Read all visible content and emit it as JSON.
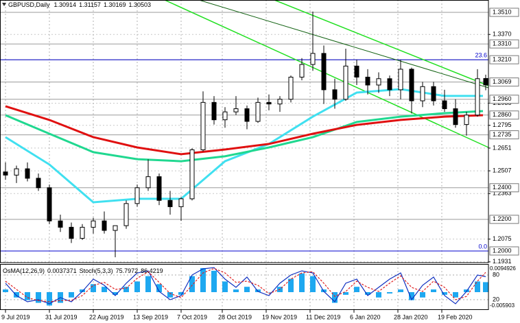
{
  "chart_data": {
    "type": "candlestick",
    "title": "GBPUSD,Daily",
    "x": [
      0,
      4,
      8,
      12,
      16,
      20,
      24,
      28,
      32,
      36,
      40,
      44,
      48,
      52,
      56,
      60,
      64,
      68,
      72,
      76,
      80,
      84,
      88,
      92,
      96,
      100,
      104,
      108,
      112,
      116,
      120,
      124,
      128,
      132,
      136,
      140,
      144,
      148,
      152,
      156,
      160,
      164,
      168,
      172,
      175
    ],
    "open": [
      1.25,
      1.248,
      1.252,
      1.246,
      1.24,
      1.219,
      1.215,
      1.208,
      1.215,
      1.219,
      1.213,
      1.216,
      1.23,
      1.24,
      1.247,
      1.232,
      1.228,
      1.233,
      1.264,
      1.294,
      1.283,
      1.288,
      1.29,
      1.282,
      1.294,
      1.293,
      1.296,
      1.31,
      1.318,
      1.325,
      1.302,
      1.296,
      1.317,
      1.31,
      1.305,
      1.309,
      1.302,
      1.315,
      1.295,
      1.304,
      1.295,
      1.29,
      1.28,
      1.286,
      1.30914
    ],
    "high": [
      1.256,
      1.254,
      1.256,
      1.249,
      1.242,
      1.223,
      1.218,
      1.217,
      1.221,
      1.225,
      1.216,
      1.232,
      1.242,
      1.258,
      1.249,
      1.238,
      1.234,
      1.265,
      1.301,
      1.298,
      1.291,
      1.298,
      1.292,
      1.297,
      1.299,
      1.298,
      1.311,
      1.322,
      1.3515,
      1.33,
      1.309,
      1.328,
      1.321,
      1.315,
      1.313,
      1.311,
      1.321,
      1.316,
      1.307,
      1.307,
      1.302,
      1.296,
      1.288,
      1.315,
      1.31157
    ],
    "low": [
      1.245,
      1.243,
      1.244,
      1.238,
      1.217,
      1.212,
      1.205,
      1.207,
      1.211,
      1.211,
      1.196,
      1.214,
      1.228,
      1.238,
      1.229,
      1.223,
      1.219,
      1.232,
      1.263,
      1.28,
      1.278,
      1.286,
      1.277,
      1.281,
      1.289,
      1.288,
      1.294,
      1.308,
      1.314,
      1.293,
      1.29,
      1.295,
      1.305,
      1.299,
      1.3,
      1.298,
      1.296,
      1.287,
      1.291,
      1.292,
      1.288,
      1.278,
      1.273,
      1.285,
      1.30169
    ],
    "close": [
      1.248,
      1.252,
      1.246,
      1.24,
      1.219,
      1.215,
      1.208,
      1.215,
      1.219,
      1.213,
      1.216,
      1.23,
      1.24,
      1.247,
      1.232,
      1.228,
      1.233,
      1.264,
      1.294,
      1.283,
      1.288,
      1.29,
      1.282,
      1.294,
      1.293,
      1.296,
      1.31,
      1.318,
      1.325,
      1.302,
      1.296,
      1.317,
      1.31,
      1.305,
      1.309,
      1.302,
      1.315,
      1.295,
      1.304,
      1.295,
      1.29,
      1.28,
      1.286,
      1.309,
      1.30503
    ],
    "bull_color": "#ffffff",
    "bear_color": "#000000",
    "xlim": [
      -2,
      176
    ],
    "xticks": [
      {
        "value": 0,
        "label": "9 Jul 2019"
      },
      {
        "value": 16,
        "label": "31 Jul 2019"
      },
      {
        "value": 32,
        "label": "22 Aug 2019"
      },
      {
        "value": 48,
        "label": "13 Sep 2019"
      },
      {
        "value": 64,
        "label": "7 Oct 2019"
      },
      {
        "value": 79,
        "label": "28 Oct 2019"
      },
      {
        "value": 95,
        "label": "19 Nov 2019"
      },
      {
        "value": 111,
        "label": "11 Dec 2019"
      },
      {
        "value": 127,
        "label": "6 Jan 2020"
      },
      {
        "value": 143,
        "label": "28 Jan 2020"
      },
      {
        "value": 159,
        "label": "19 Feb 2020"
      }
    ],
    "ylim": [
      1.1926,
      1.3588
    ],
    "yticks": [
      {
        "value": 1.337,
        "label": "1.3370"
      },
      {
        "value": 1.2935,
        "label": "1.2935"
      },
      {
        "value": 1.2795,
        "label": "1.2795"
      },
      {
        "value": 1.2651,
        "label": "1.2651"
      },
      {
        "value": 1.2507,
        "label": "1.2507"
      },
      {
        "value": 1.2363,
        "label": "1.2363"
      },
      {
        "value": 1.2075,
        "label": "1.2075"
      },
      {
        "value": 1.1931,
        "label": "1.1931"
      }
    ],
    "grid": true,
    "levels": [
      {
        "value": 1.351,
        "label": "1.3510"
      },
      {
        "value": 1.331,
        "label": "1.3310"
      },
      {
        "value": 1.321,
        "label": "1.3210"
      },
      {
        "value": 1.3069,
        "label": "1.3069"
      },
      {
        "value": 1.296,
        "label": "1.2960"
      },
      {
        "value": 1.286,
        "label": "1.2860"
      },
      {
        "value": 1.2735,
        "label": "1.2735"
      },
      {
        "value": 1.24,
        "label": "1.2400"
      },
      {
        "value": 1.22,
        "label": "1.2200"
      },
      {
        "value": 1.2,
        "label": "1.2000"
      }
    ],
    "fibo": [
      {
        "value": 1.321,
        "label": "23.6"
      },
      {
        "value": 1.2,
        "label": "0.0"
      }
    ],
    "fibo_color": "#0000cc",
    "moving_averages": [
      {
        "color": "#40e0f0",
        "x": [
          0,
          16,
          32,
          48,
          64,
          80,
          96,
          112,
          128,
          144,
          160,
          174
        ],
        "values": [
          1.272,
          1.2547,
          1.2308,
          1.233,
          1.233,
          1.2568,
          1.2677,
          1.285,
          1.3002,
          1.3024,
          1.2981,
          1.2981
        ]
      },
      {
        "color": "#20d890",
        "x": [
          0,
          16,
          32,
          48,
          64,
          80,
          96,
          112,
          128,
          144,
          160,
          174
        ],
        "values": [
          1.2859,
          1.2742,
          1.2625,
          1.2581,
          1.2568,
          1.2599,
          1.2655,
          1.272,
          1.2816,
          1.285,
          1.2872,
          1.2885
        ]
      },
      {
        "color": "#e01010",
        "x": [
          0,
          16,
          32,
          48,
          64,
          80,
          96,
          112,
          128,
          144,
          160,
          174
        ],
        "values": [
          1.2916,
          1.2829,
          1.272,
          1.2655,
          1.2612,
          1.2642,
          1.2677,
          1.2742,
          1.2798,
          1.2829,
          1.285,
          1.2859
        ]
      }
    ],
    "indicator": {
      "osma_name": "OsMA(12,26,9)",
      "stoch_name": "Stoch(5,3,3)",
      "osma": [
        0.001,
        -0.002,
        -0.003,
        -0.004,
        -0.005,
        -0.004,
        -0.002,
        0.001,
        0.003,
        0.002,
        -0.001,
        0.002,
        0.004,
        0.006,
        0.003,
        -0.002,
        -0.001,
        0.006,
        0.009,
        0.008,
        0.004,
        0.001,
        0.002,
        0.001,
        0.0,
        0.002,
        0.005,
        0.007,
        0.006,
        0.001,
        -0.004,
        -0.001,
        0.002,
        -0.001,
        -0.002,
        -0.0005,
        0.001,
        -0.003,
        -0.002,
        0.001,
        -0.001,
        -0.002,
        0.001,
        0.004,
        0.0037371
      ],
      "stoch_main": [
        60,
        30,
        15,
        20,
        10,
        25,
        15,
        40,
        70,
        55,
        30,
        60,
        85,
        90,
        40,
        20,
        30,
        80,
        95,
        98,
        70,
        50,
        75,
        40,
        30,
        60,
        80,
        90,
        85,
        40,
        15,
        60,
        70,
        30,
        50,
        70,
        85,
        20,
        55,
        75,
        30,
        10,
        40,
        80,
        75.7972
      ],
      "stoch_signal": [
        65,
        45,
        25,
        18,
        15,
        18,
        18,
        30,
        55,
        62,
        45,
        48,
        72,
        88,
        62,
        35,
        25,
        55,
        85,
        96,
        85,
        62,
        65,
        55,
        35,
        45,
        70,
        85,
        88,
        60,
        28,
        40,
        65,
        50,
        40,
        60,
        78,
        50,
        40,
        65,
        50,
        20,
        28,
        65,
        86.4219
      ],
      "osma_color": "#1ea8f0",
      "stoch_color": "#1030c0",
      "signal_color": "#e02020",
      "osma_ylim": [
        -0.005903,
        0.0094926
      ],
      "osma_yticks": [
        0.0094926,
        -0.005903
      ],
      "stoch_ylim": [
        0,
        100
      ],
      "stoch_yticks": [
        80,
        20
      ]
    }
  }
}
